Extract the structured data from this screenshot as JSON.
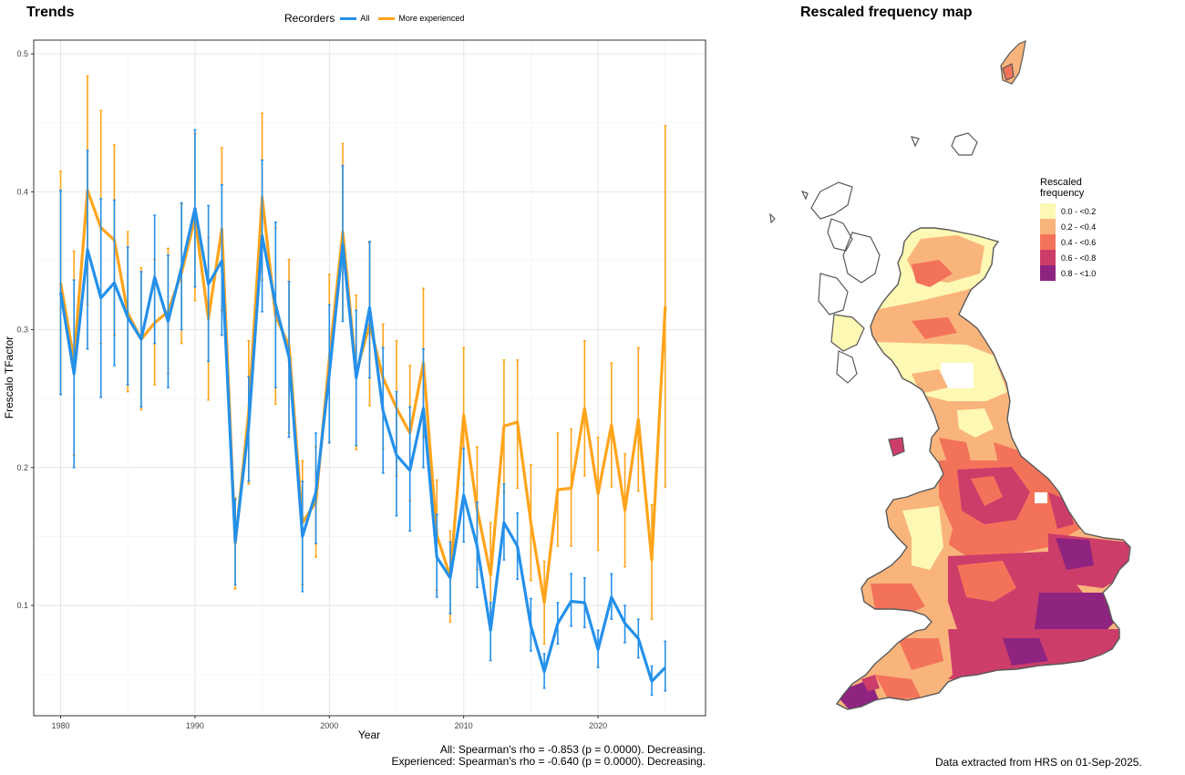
{
  "trends": {
    "title": "Trends",
    "legend_title": "Recorders",
    "footer": [
      "All: Spearman's rho = -0.853 (p = 0.0000). Decreasing.",
      "Experienced: Spearman's rho = -0.640 (p = 0.0000). Decreasing."
    ]
  },
  "chart_data": {
    "type": "line",
    "xlabel": "Year",
    "ylabel": "Frescalo TFactor",
    "xlim": [
      1978,
      2028
    ],
    "ylim": [
      0.02,
      0.51
    ],
    "xticks": [
      1980,
      1990,
      2000,
      2010,
      2020
    ],
    "yticks": [
      0.1,
      0.2,
      0.3,
      0.4,
      0.5
    ],
    "grid": true,
    "legend_position": "top",
    "series": [
      {
        "name": "All",
        "color": "#2490ea",
        "x": [
          1980,
          1981,
          1982,
          1983,
          1984,
          1985,
          1986,
          1987,
          1988,
          1989,
          1990,
          1991,
          1992,
          1993,
          1994,
          1995,
          1996,
          1997,
          1998,
          1999,
          2000,
          2001,
          2002,
          2003,
          2004,
          2005,
          2006,
          2007,
          2008,
          2009,
          2010,
          2011,
          2012,
          2013,
          2014,
          2015,
          2016,
          2017,
          2018,
          2019,
          2020,
          2021,
          2022,
          2023,
          2024,
          2025
        ],
        "y": [
          0.327,
          0.268,
          0.358,
          0.323,
          0.334,
          0.309,
          0.293,
          0.338,
          0.306,
          0.345,
          0.388,
          0.333,
          0.35,
          0.146,
          0.23,
          0.368,
          0.318,
          0.28,
          0.15,
          0.182,
          0.268,
          0.362,
          0.265,
          0.316,
          0.241,
          0.209,
          0.198,
          0.243,
          0.135,
          0.12,
          0.18,
          0.143,
          0.082,
          0.16,
          0.143,
          0.085,
          0.052,
          0.087,
          0.103,
          0.102,
          0.068,
          0.106,
          0.087,
          0.076,
          0.045,
          0.055
        ],
        "lower": [
          0.253,
          0.2,
          0.286,
          0.251,
          0.274,
          0.26,
          0.244,
          0.29,
          0.258,
          0.3,
          0.331,
          0.277,
          0.296,
          0.115,
          0.19,
          0.313,
          0.258,
          0.222,
          0.11,
          0.145,
          0.218,
          0.306,
          0.216,
          0.265,
          0.196,
          0.165,
          0.154,
          0.2,
          0.106,
          0.094,
          0.146,
          0.113,
          0.06,
          0.133,
          0.119,
          0.067,
          0.04,
          0.072,
          0.085,
          0.084,
          0.055,
          0.09,
          0.073,
          0.062,
          0.035,
          0.038
        ],
        "upper": [
          0.401,
          0.336,
          0.43,
          0.395,
          0.394,
          0.36,
          0.342,
          0.383,
          0.354,
          0.392,
          0.445,
          0.39,
          0.405,
          0.177,
          0.266,
          0.423,
          0.378,
          0.335,
          0.19,
          0.225,
          0.318,
          0.419,
          0.314,
          0.364,
          0.287,
          0.255,
          0.244,
          0.286,
          0.166,
          0.146,
          0.214,
          0.175,
          0.102,
          0.188,
          0.167,
          0.105,
          0.065,
          0.102,
          0.123,
          0.12,
          0.082,
          0.123,
          0.1,
          0.09,
          0.056,
          0.074
        ]
      },
      {
        "name": "More experienced",
        "color": "#ffa41b",
        "x": [
          1980,
          1981,
          1982,
          1983,
          1984,
          1985,
          1986,
          1987,
          1988,
          1989,
          1990,
          1991,
          1992,
          1993,
          1994,
          1995,
          1996,
          1997,
          1998,
          1999,
          2000,
          2001,
          2002,
          2003,
          2004,
          2005,
          2006,
          2007,
          2008,
          2009,
          2010,
          2011,
          2012,
          2013,
          2014,
          2015,
          2016,
          2017,
          2018,
          2019,
          2020,
          2021,
          2022,
          2023,
          2024,
          2025
        ],
        "y": [
          0.334,
          0.278,
          0.401,
          0.374,
          0.365,
          0.312,
          0.293,
          0.305,
          0.313,
          0.341,
          0.381,
          0.308,
          0.373,
          0.145,
          0.24,
          0.396,
          0.31,
          0.288,
          0.16,
          0.175,
          0.279,
          0.371,
          0.269,
          0.304,
          0.265,
          0.243,
          0.225,
          0.276,
          0.151,
          0.121,
          0.238,
          0.17,
          0.122,
          0.23,
          0.233,
          0.16,
          0.102,
          0.184,
          0.185,
          0.243,
          0.181,
          0.231,
          0.169,
          0.235,
          0.133,
          0.317
        ],
        "lower": [
          0.253,
          0.209,
          0.318,
          0.29,
          0.296,
          0.255,
          0.242,
          0.26,
          0.268,
          0.29,
          0.321,
          0.249,
          0.314,
          0.112,
          0.188,
          0.336,
          0.246,
          0.225,
          0.115,
          0.135,
          0.218,
          0.308,
          0.213,
          0.245,
          0.214,
          0.194,
          0.176,
          0.222,
          0.111,
          0.088,
          0.188,
          0.126,
          0.086,
          0.182,
          0.185,
          0.118,
          0.072,
          0.143,
          0.143,
          0.194,
          0.14,
          0.186,
          0.128,
          0.183,
          0.09,
          0.186
        ],
        "upper": [
          0.415,
          0.357,
          0.484,
          0.459,
          0.434,
          0.371,
          0.345,
          0.351,
          0.359,
          0.391,
          0.442,
          0.367,
          0.432,
          0.178,
          0.292,
          0.457,
          0.374,
          0.351,
          0.205,
          0.215,
          0.34,
          0.435,
          0.325,
          0.363,
          0.304,
          0.292,
          0.274,
          0.33,
          0.191,
          0.154,
          0.287,
          0.215,
          0.16,
          0.278,
          0.278,
          0.202,
          0.132,
          0.225,
          0.228,
          0.292,
          0.222,
          0.276,
          0.21,
          0.287,
          0.173,
          0.448
        ]
      }
    ]
  },
  "map": {
    "title": "Rescaled frequency map",
    "legend_title_lines": [
      "Rescaled",
      "frequency"
    ],
    "legend": [
      {
        "label": "0.0 - <0.2",
        "color": "#fdf8b4"
      },
      {
        "label": "0.2 - <0.4",
        "color": "#f9b47c"
      },
      {
        "label": "0.4 - <0.6",
        "color": "#f3735a"
      },
      {
        "label": "0.6 - <0.8",
        "color": "#cc3d6a"
      },
      {
        "label": "0.8 - <1.0",
        "color": "#8e2480"
      }
    ],
    "outline_color": "#595959",
    "footer": "Data extracted from HRS on 01-Sep-2025."
  }
}
